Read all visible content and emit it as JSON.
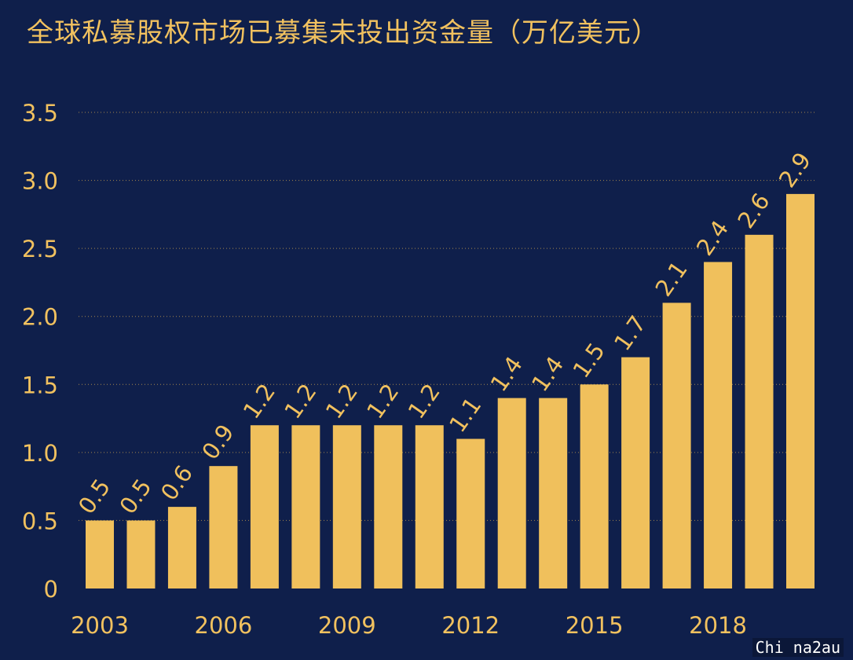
{
  "watermark": "Chi na2au",
  "colors": {
    "background": "#0f1f4b",
    "bar": "#f0c05c",
    "text": "#f1c15f",
    "grid": "#c8a04e"
  },
  "chart_data": {
    "type": "bar",
    "title": "全球私募股权市场已募集未投出资金量（万亿美元）",
    "xlabel": "",
    "ylabel": "",
    "ylim": [
      0,
      3.5
    ],
    "yticks": [
      "0",
      "0.5",
      "1.0",
      "1.5",
      "2.0",
      "2.5",
      "3.0",
      "3.5"
    ],
    "grid": true,
    "categories": [
      "2003",
      "2004",
      "2005",
      "2006",
      "2007",
      "2008",
      "2009",
      "2010",
      "2011",
      "2012",
      "2013",
      "2014",
      "2015",
      "2016",
      "2017",
      "2018",
      "2019",
      "2020"
    ],
    "xtick_labels": [
      "2003",
      "",
      "",
      "2006",
      "",
      "",
      "2009",
      "",
      "",
      "2012",
      "",
      "",
      "2015",
      "",
      "",
      "2018",
      "",
      ""
    ],
    "values": [
      0.5,
      0.5,
      0.6,
      0.9,
      1.2,
      1.2,
      1.2,
      1.2,
      1.2,
      1.1,
      1.4,
      1.4,
      1.5,
      1.7,
      2.1,
      2.4,
      2.6,
      2.9
    ],
    "data_labels": [
      "0.5",
      "0.5",
      "0.6",
      "0.9",
      "1.2",
      "1.2",
      "1.2",
      "1.2",
      "1.2",
      "1.1",
      "1.4",
      "1.4",
      "1.5",
      "1.7",
      "2.1",
      "2.4",
      "2.6",
      "2.9"
    ]
  }
}
